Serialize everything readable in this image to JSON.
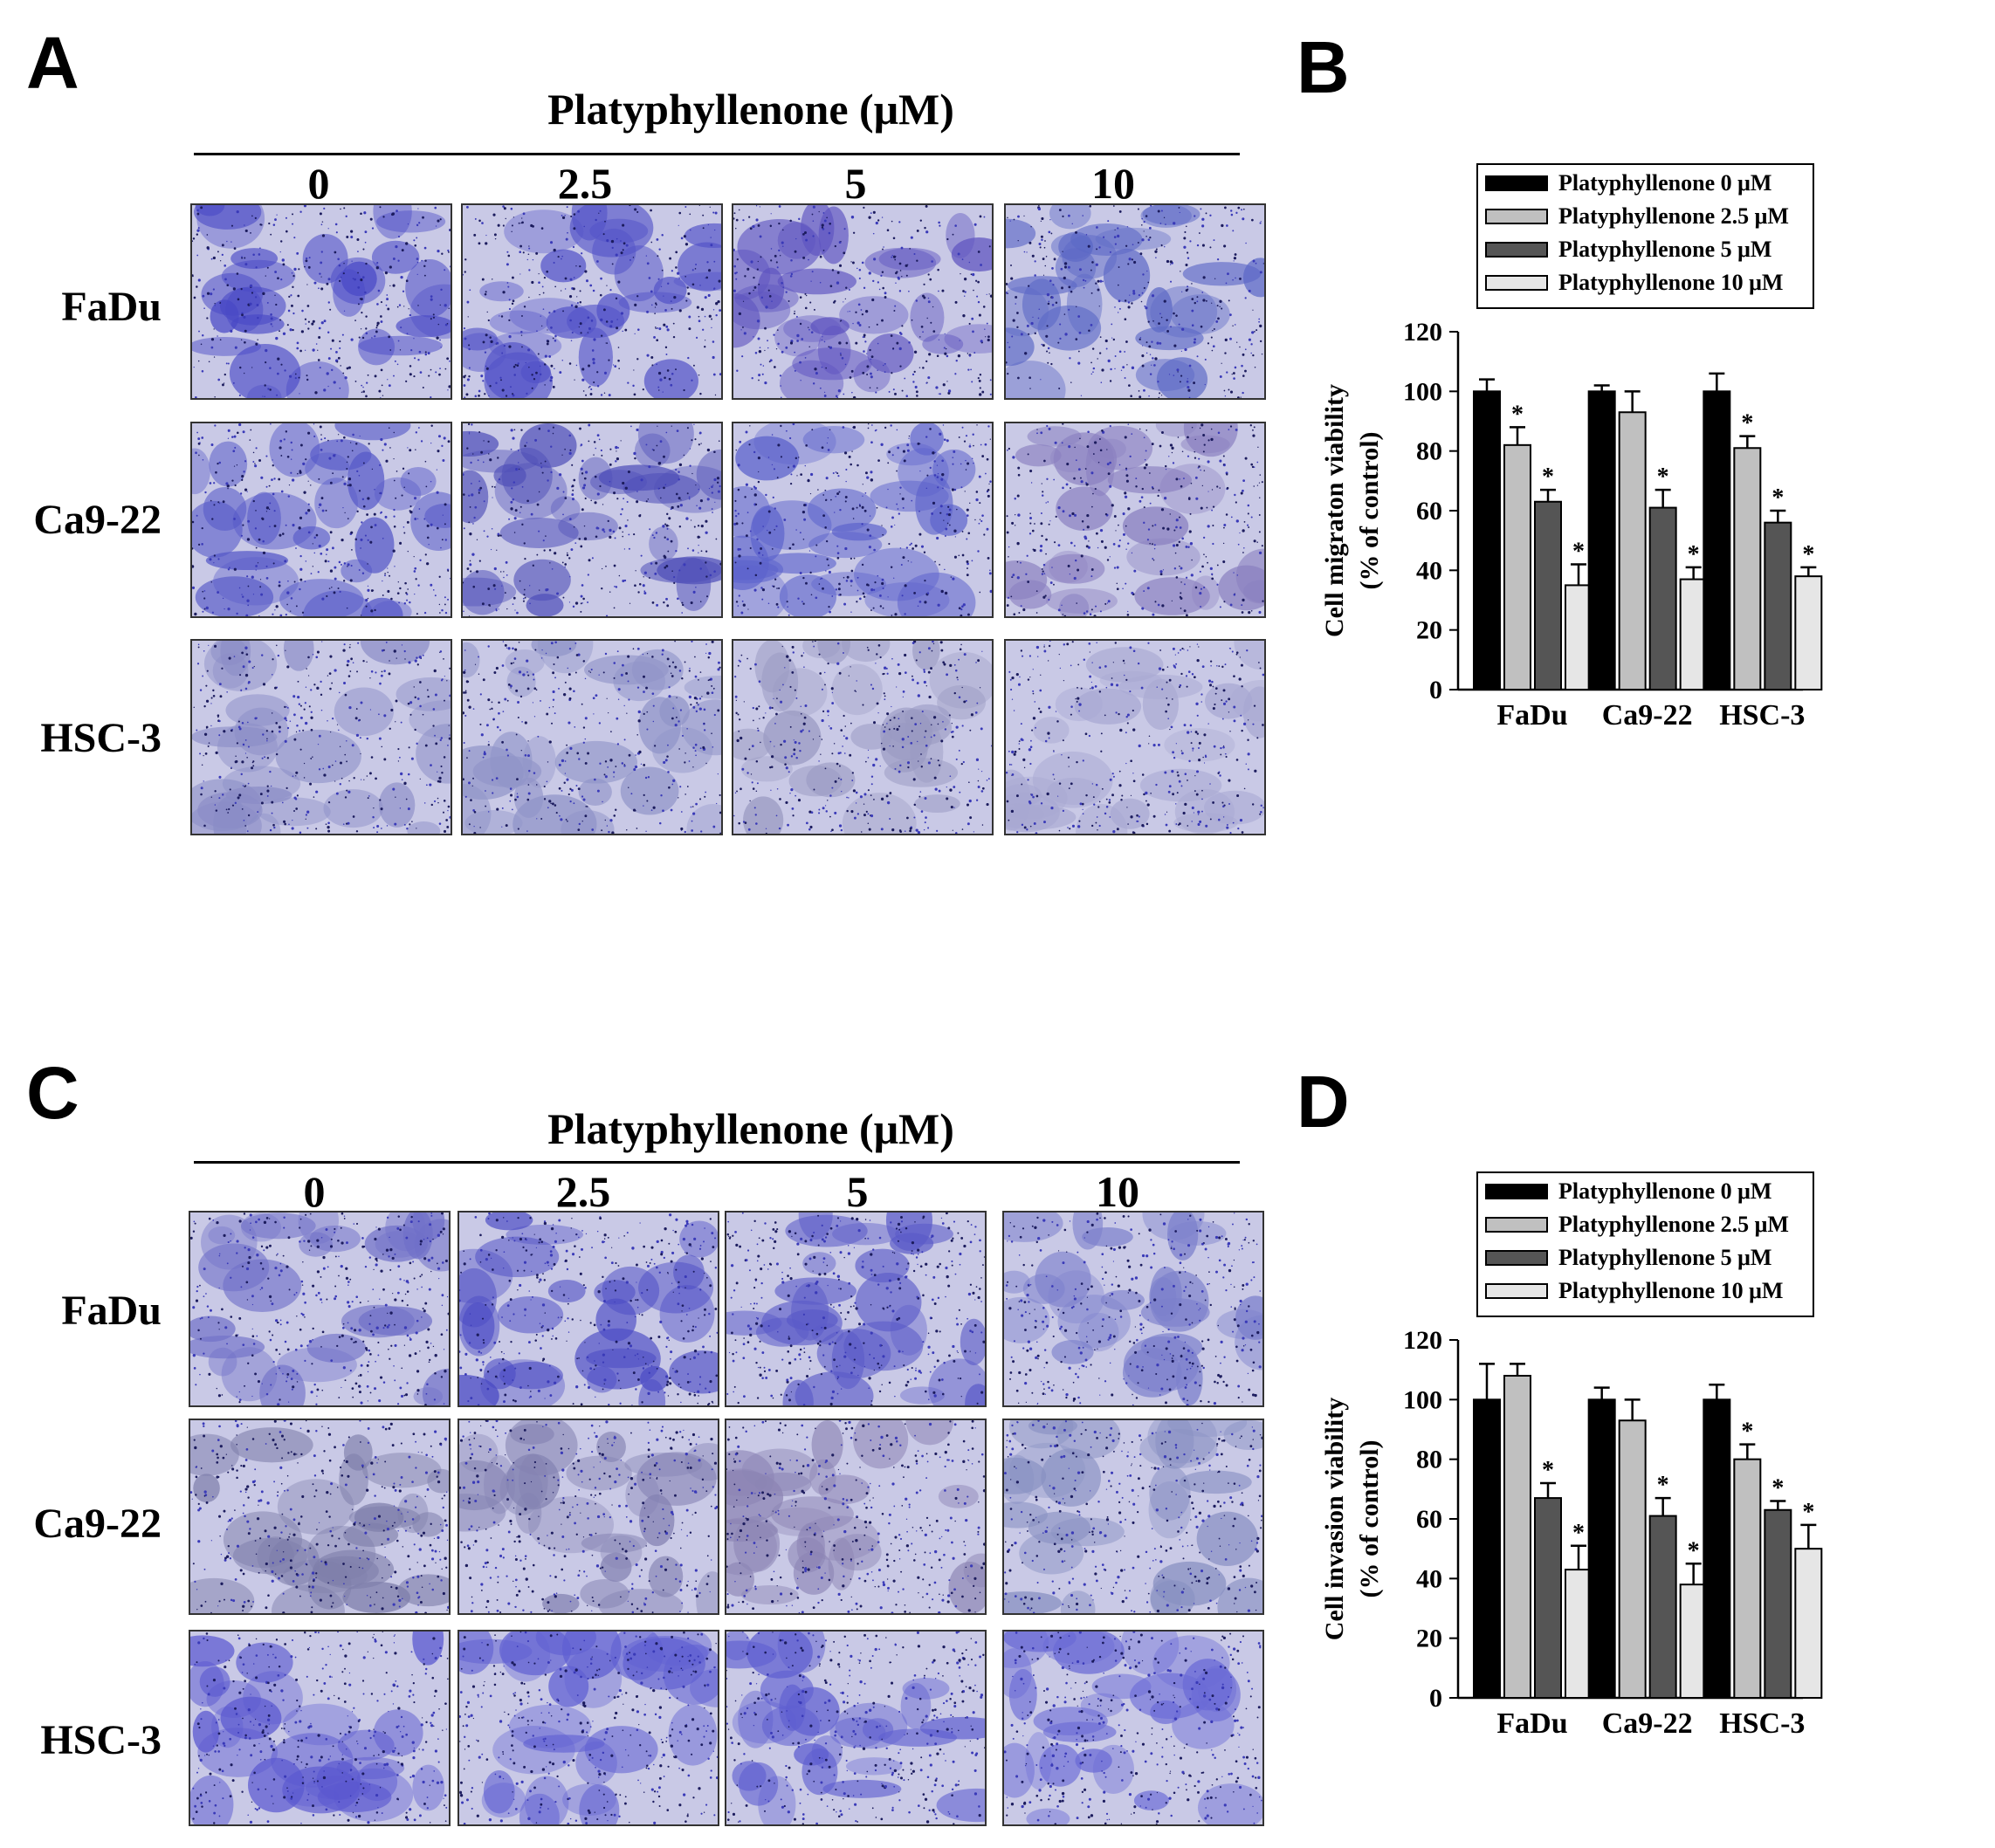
{
  "figure": {
    "panel_letters": [
      "A",
      "B",
      "C",
      "D"
    ],
    "concentration_title": "Platyphyllenone (μM)",
    "concentrations": [
      "0",
      "2.5",
      "5",
      "10"
    ],
    "cell_lines": [
      "FaDu",
      "Ca9-22",
      "HSC-3"
    ]
  },
  "colors": {
    "bar_0": "#000000",
    "bar_2_5": "#c0c0c0",
    "bar_5": "#555555",
    "bar_10": "#e6e6e6",
    "stain_dark": "#3a3ab8",
    "stain_light": "#c9c9e6"
  },
  "micrographs": {
    "migration": [
      [
        {
          "tone": "#4848c6"
        },
        {
          "tone": "#5252c8"
        },
        {
          "tone": "#5e54c0"
        },
        {
          "tone": "#5c68c6"
        }
      ],
      [
        {
          "tone": "#5558c8"
        },
        {
          "tone": "#4e4eb8"
        },
        {
          "tone": "#5c62cc"
        },
        {
          "tone": "#8a80c0"
        }
      ],
      [
        {
          "tone": "#8a8cc6"
        },
        {
          "tone": "#9094c8"
        },
        {
          "tone": "#9a9ac2"
        },
        {
          "tone": "#a8a8d2"
        }
      ]
    ],
    "invasion": [
      [
        {
          "tone": "#7070c8"
        },
        {
          "tone": "#4a4ac4"
        },
        {
          "tone": "#5a5ac8"
        },
        {
          "tone": "#7c80cc"
        }
      ],
      [
        {
          "tone": "#7e7eaa"
        },
        {
          "tone": "#8482b2"
        },
        {
          "tone": "#8c84b4"
        },
        {
          "tone": "#8890c2"
        }
      ],
      [
        {
          "tone": "#5a58d0"
        },
        {
          "tone": "#6060d2"
        },
        {
          "tone": "#5e5ed0"
        },
        {
          "tone": "#6a6ad6"
        }
      ]
    ]
  },
  "chart_data": [
    {
      "type": "bar",
      "panel": "B",
      "categories": [
        "FaDu",
        "Ca9-22",
        "HSC-3"
      ],
      "ylabel": "Cell migraton viability",
      "ylabel2": "(% of control)",
      "ylim": [
        0,
        120
      ],
      "yticks": [
        0,
        20,
        40,
        60,
        80,
        100,
        120
      ],
      "legend_position": "top",
      "series": [
        {
          "name": "Platyphyllenone 0 μM",
          "values": [
            100,
            100,
            100
          ],
          "errors": [
            4,
            2,
            6
          ],
          "significant": [
            false,
            false,
            false
          ]
        },
        {
          "name": "Platyphyllenone 2.5 μM",
          "values": [
            82,
            93,
            81
          ],
          "errors": [
            6,
            7,
            4
          ],
          "significant": [
            true,
            false,
            true
          ]
        },
        {
          "name": "Platyphyllenone 5 μM",
          "values": [
            63,
            61,
            56
          ],
          "errors": [
            4,
            6,
            4
          ],
          "significant": [
            true,
            true,
            true
          ]
        },
        {
          "name": "Platyphyllenone 10 μM",
          "values": [
            35,
            37,
            38
          ],
          "errors": [
            7,
            4,
            3
          ],
          "significant": [
            true,
            true,
            true
          ]
        }
      ],
      "significance_marker": "*"
    },
    {
      "type": "bar",
      "panel": "D",
      "categories": [
        "FaDu",
        "Ca9-22",
        "HSC-3"
      ],
      "ylabel": "Cell invasion viability",
      "ylabel2": "(% of control)",
      "ylim": [
        0,
        120
      ],
      "yticks": [
        0,
        20,
        40,
        60,
        80,
        100,
        120
      ],
      "legend_position": "top",
      "series": [
        {
          "name": "Platyphyllenone 0 μM",
          "values": [
            100,
            100,
            100
          ],
          "errors": [
            12,
            4,
            5
          ],
          "significant": [
            false,
            false,
            false
          ]
        },
        {
          "name": "Platyphyllenone 2.5 μM",
          "values": [
            108,
            93,
            80
          ],
          "errors": [
            4,
            7,
            5
          ],
          "significant": [
            false,
            false,
            true
          ]
        },
        {
          "name": "Platyphyllenone 5 μM",
          "values": [
            67,
            61,
            63
          ],
          "errors": [
            5,
            6,
            3
          ],
          "significant": [
            true,
            true,
            true
          ]
        },
        {
          "name": "Platyphyllenone 10 μM",
          "values": [
            43,
            38,
            50
          ],
          "errors": [
            8,
            7,
            8
          ],
          "significant": [
            true,
            true,
            true
          ]
        }
      ],
      "significance_marker": "*"
    }
  ]
}
